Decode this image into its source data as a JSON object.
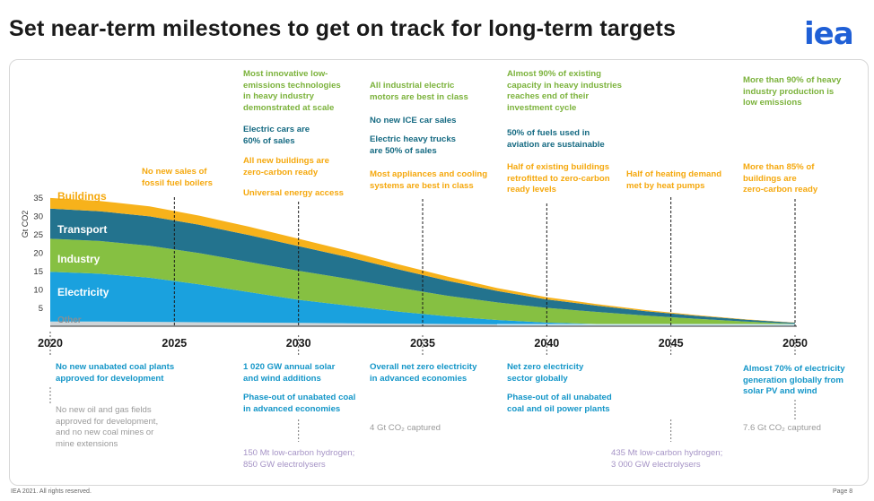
{
  "title": "Set near-term milestones to get on track for long-term targets",
  "logo": "iea",
  "footer": {
    "left": "IEA 2021. All rights reserved.",
    "right": "Page 8"
  },
  "colors": {
    "buildings": "#f7b21b",
    "transport": "#23738e",
    "industry": "#86c042",
    "electricity": "#1aa1de",
    "other": "#cfd5d8",
    "accent_green": "#7bb23b",
    "accent_orange": "#f5a80d",
    "accent_blue": "#1496c8",
    "accent_dteal": "#156a82"
  },
  "chart_data": {
    "type": "area",
    "stacked": true,
    "ylabel": "Gt CO2",
    "ylim": [
      0,
      35
    ],
    "yticks": [
      5,
      10,
      15,
      20,
      25,
      30,
      35
    ],
    "xlim": [
      2020,
      2050
    ],
    "xticks": [
      2020,
      2025,
      2030,
      2035,
      2040,
      2045,
      2050
    ],
    "x": [
      2020,
      2022,
      2024,
      2026,
      2028,
      2030,
      2032,
      2034,
      2036,
      2038,
      2040,
      2042,
      2044,
      2046,
      2048,
      2050
    ],
    "series": [
      {
        "name": "Other",
        "values": [
          1.3,
          1.3,
          1.2,
          1.1,
          1.0,
          0.9,
          0.8,
          0.7,
          0.6,
          0.5,
          0.4,
          0.3,
          0.2,
          0.15,
          0.1,
          0.05
        ]
      },
      {
        "name": "Electricity",
        "values": [
          13.5,
          13.0,
          12.0,
          10.3,
          8.3,
          6.3,
          4.8,
          3.3,
          2.1,
          1.2,
          0.6,
          0.3,
          0.1,
          0.0,
          0.0,
          0.0
        ]
      },
      {
        "name": "Industry",
        "values": [
          9.0,
          8.9,
          8.7,
          8.5,
          8.2,
          7.9,
          7.3,
          6.5,
          5.6,
          4.8,
          4.0,
          3.3,
          2.6,
          1.9,
          1.2,
          0.6
        ]
      },
      {
        "name": "Transport",
        "values": [
          8.2,
          8.1,
          8.0,
          7.7,
          7.3,
          6.7,
          5.9,
          5.0,
          4.1,
          3.1,
          2.3,
          1.7,
          1.2,
          0.8,
          0.5,
          0.3
        ]
      },
      {
        "name": "Buildings",
        "values": [
          2.9,
          2.8,
          2.7,
          2.5,
          2.3,
          2.0,
          1.7,
          1.4,
          1.1,
          0.8,
          0.6,
          0.45,
          0.3,
          0.2,
          0.1,
          0.05
        ]
      }
    ],
    "milestones_above": [
      {
        "year": 2025,
        "notes": [
          {
            "color": "orange",
            "lines": [
              "No new sales of",
              "fossil fuel boilers"
            ]
          }
        ]
      },
      {
        "year": 2030,
        "notes": [
          {
            "color": "green",
            "lines": [
              "Most innovative low-",
              "emissions technologies",
              "in heavy industry",
              "demonstrated at scale"
            ]
          },
          {
            "color": "dteal",
            "lines": [
              "Electric cars are",
              "60% of sales"
            ]
          },
          {
            "color": "orange",
            "lines": [
              "All new buildings are",
              "zero-carbon ready"
            ]
          },
          {
            "color": "orange",
            "lines": [
              "Universal energy access"
            ]
          }
        ]
      },
      {
        "year": 2035,
        "notes": [
          {
            "color": "green",
            "lines": [
              "All industrial electric",
              "motors are best in class"
            ]
          },
          {
            "color": "dteal",
            "lines": [
              "No new ICE car sales"
            ]
          },
          {
            "color": "dteal",
            "lines": [
              "Electric heavy trucks",
              "are 50% of sales"
            ]
          },
          {
            "color": "orange",
            "lines": [
              "Most appliances and cooling",
              "systems are best in class"
            ]
          }
        ]
      },
      {
        "year": 2040,
        "notes": [
          {
            "color": "green",
            "lines": [
              "Almost 90% of existing",
              "capacity in heavy industries",
              "reaches end of their",
              "investment cycle"
            ]
          },
          {
            "color": "dteal",
            "lines": [
              "50% of fuels used in",
              "aviation are sustainable"
            ]
          },
          {
            "color": "orange",
            "lines": [
              "Half of existing buildings",
              "retrofitted to zero-carbon",
              "ready levels"
            ]
          }
        ]
      },
      {
        "year": 2045,
        "notes": [
          {
            "color": "orange",
            "lines": [
              "Half of heating demand",
              "met by heat pumps"
            ]
          }
        ]
      },
      {
        "year": 2050,
        "notes": [
          {
            "color": "green",
            "lines": [
              "More than 90% of heavy",
              "industry production is",
              "low emissions"
            ]
          },
          {
            "color": "orange",
            "lines": [
              "More than 85% of",
              "buildings are",
              "zero-carbon ready"
            ]
          }
        ]
      }
    ],
    "milestones_below": [
      {
        "year": 2020,
        "notes": [
          {
            "color": "blue",
            "lines": [
              "No new unabated coal plants",
              "approved for development"
            ]
          },
          {
            "color": "gray",
            "lines": [
              "No new oil and gas fields",
              "approved for development,",
              "and no new coal mines or",
              "mine extensions"
            ]
          }
        ]
      },
      {
        "year": 2030,
        "notes": [
          {
            "color": "blue",
            "lines": [
              "1 020 GW annual solar",
              "and wind additions"
            ]
          },
          {
            "color": "blue",
            "lines": [
              "Phase-out of unabated coal",
              "in advanced economies"
            ]
          },
          {
            "color": "purple",
            "lines": [
              "150 Mt low-carbon hydrogen;",
              "850 GW electrolysers"
            ]
          }
        ]
      },
      {
        "year": 2035,
        "notes": [
          {
            "color": "blue",
            "lines": [
              "Overall net zero electricity",
              "in advanced economies"
            ]
          },
          {
            "color": "gray",
            "lines": [
              "4 Gt CO₂ captured"
            ]
          }
        ]
      },
      {
        "year": 2040,
        "notes": [
          {
            "color": "blue",
            "lines": [
              "Net zero electricity",
              "sector globally"
            ]
          },
          {
            "color": "blue",
            "lines": [
              "Phase-out of all unabated",
              "coal and oil power plants"
            ]
          }
        ]
      },
      {
        "year": 2045,
        "notes": [
          {
            "color": "purple",
            "lines": [
              "435 Mt low-carbon hydrogen;",
              "3 000 GW electrolysers"
            ]
          }
        ]
      },
      {
        "year": 2050,
        "notes": [
          {
            "color": "blue",
            "lines": [
              "Almost 70% of electricity",
              "generation globally from",
              "solar PV and wind"
            ]
          },
          {
            "color": "gray",
            "lines": [
              "7.6 Gt CO₂ captured"
            ]
          }
        ]
      }
    ]
  }
}
